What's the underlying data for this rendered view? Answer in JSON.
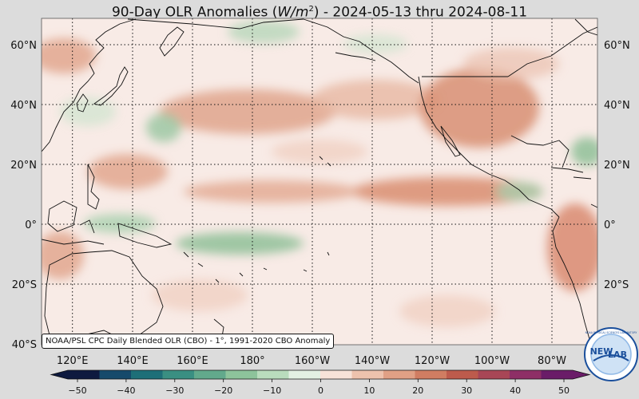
{
  "title": {
    "prefix": "90-Day OLR Anomalies (",
    "unit_base": "W/m",
    "unit_exp": "2",
    "suffix": ") - 2024-05-13 thru 2024-08-11"
  },
  "map": {
    "lat_labels_left": [
      "60°N",
      "40°N",
      "20°N",
      "0°",
      "20°S",
      "40°S"
    ],
    "lat_labels_right": [
      "60°N",
      "40°N",
      "20°N",
      "0°",
      "20°S"
    ],
    "lon_labels": [
      "120°E",
      "140°E",
      "160°E",
      "180°",
      "160°W",
      "140°W",
      "120°W",
      "100°W",
      "80°W"
    ]
  },
  "colorbar": {
    "ticks": [
      "−50",
      "−40",
      "−30",
      "−20",
      "−10",
      "0",
      "10",
      "20",
      "30",
      "40",
      "50"
    ],
    "negative_colors": [
      "#0e1a3f",
      "#164a6b",
      "#1e6f78",
      "#3a8f82",
      "#62a98c",
      "#8dc39b",
      "#b9dcbd",
      "#e3f0e3"
    ],
    "positive_colors": [
      "#f7e2d8",
      "#edc2ad",
      "#e0a085",
      "#d07d62",
      "#bd5b4c",
      "#a84656",
      "#8e2f66",
      "#6a1c68"
    ]
  },
  "credit": "NOAA/PSL CPC Daily Blended OLR (CBO) - 1°, 1991-2020 CBO Anomaly",
  "logo": {
    "text_a": "NEW",
    "text_b": "LAB",
    "ring_text": "NOAA PHYSICAL SCIENCES LABORATORY",
    "colors": [
      "#1a4f9c",
      "#8fb8e6",
      "#ffffff"
    ]
  }
}
